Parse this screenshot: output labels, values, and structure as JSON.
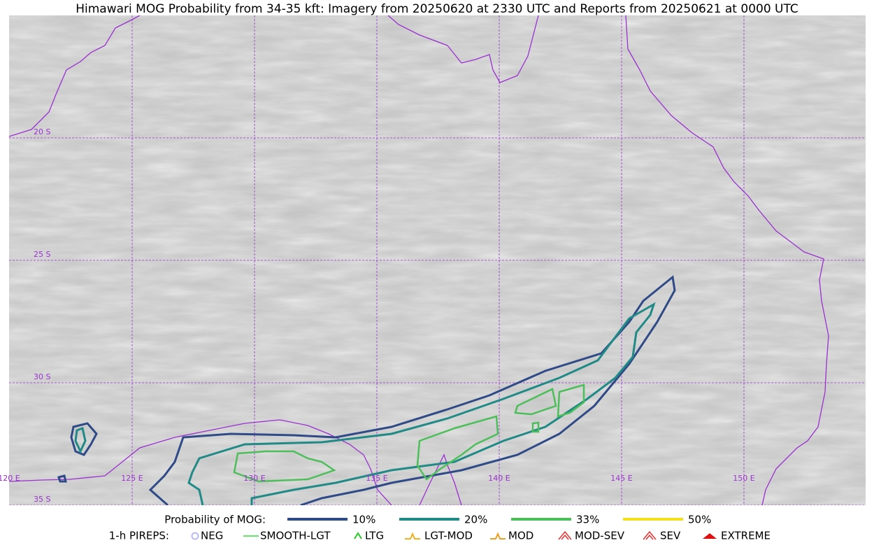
{
  "title": "Himawari MOG Probability from 34-35 kft: Imagery from 20250620 at 2330 UTC and Reports from 20250621 at 0000 UTC",
  "map": {
    "lat_labels": [
      "20 S",
      "25 S",
      "30 S",
      "35 S"
    ],
    "lon_labels": [
      "120 E",
      "125 E",
      "130 E",
      "135 E",
      "140 E",
      "145 E",
      "150 E"
    ]
  },
  "legend": {
    "probability_title": "Probability of MOG:",
    "probability_levels": [
      {
        "label": "10%",
        "color": "#2e4a87"
      },
      {
        "label": "20%",
        "color": "#1f8a86"
      },
      {
        "label": "33%",
        "color": "#4dbf5a"
      },
      {
        "label": "50%",
        "color": "#f3e01c"
      }
    ],
    "pirep_title": "1-h PIREPS:",
    "pireps": [
      {
        "label": "NEG",
        "color": "#b8b8f0"
      },
      {
        "label": "SMOOTH-LGT",
        "color": "#33dd33"
      },
      {
        "label": "LTG",
        "color": "#22cc22"
      },
      {
        "label": "LGT-MOD",
        "color": "#f0b020"
      },
      {
        "label": "MOD",
        "color": "#f0a020"
      },
      {
        "label": "MOD-SEV",
        "color": "#e83030"
      },
      {
        "label": "SEV",
        "color": "#e83030"
      },
      {
        "label": "EXTREME",
        "color": "#e01010"
      }
    ]
  }
}
